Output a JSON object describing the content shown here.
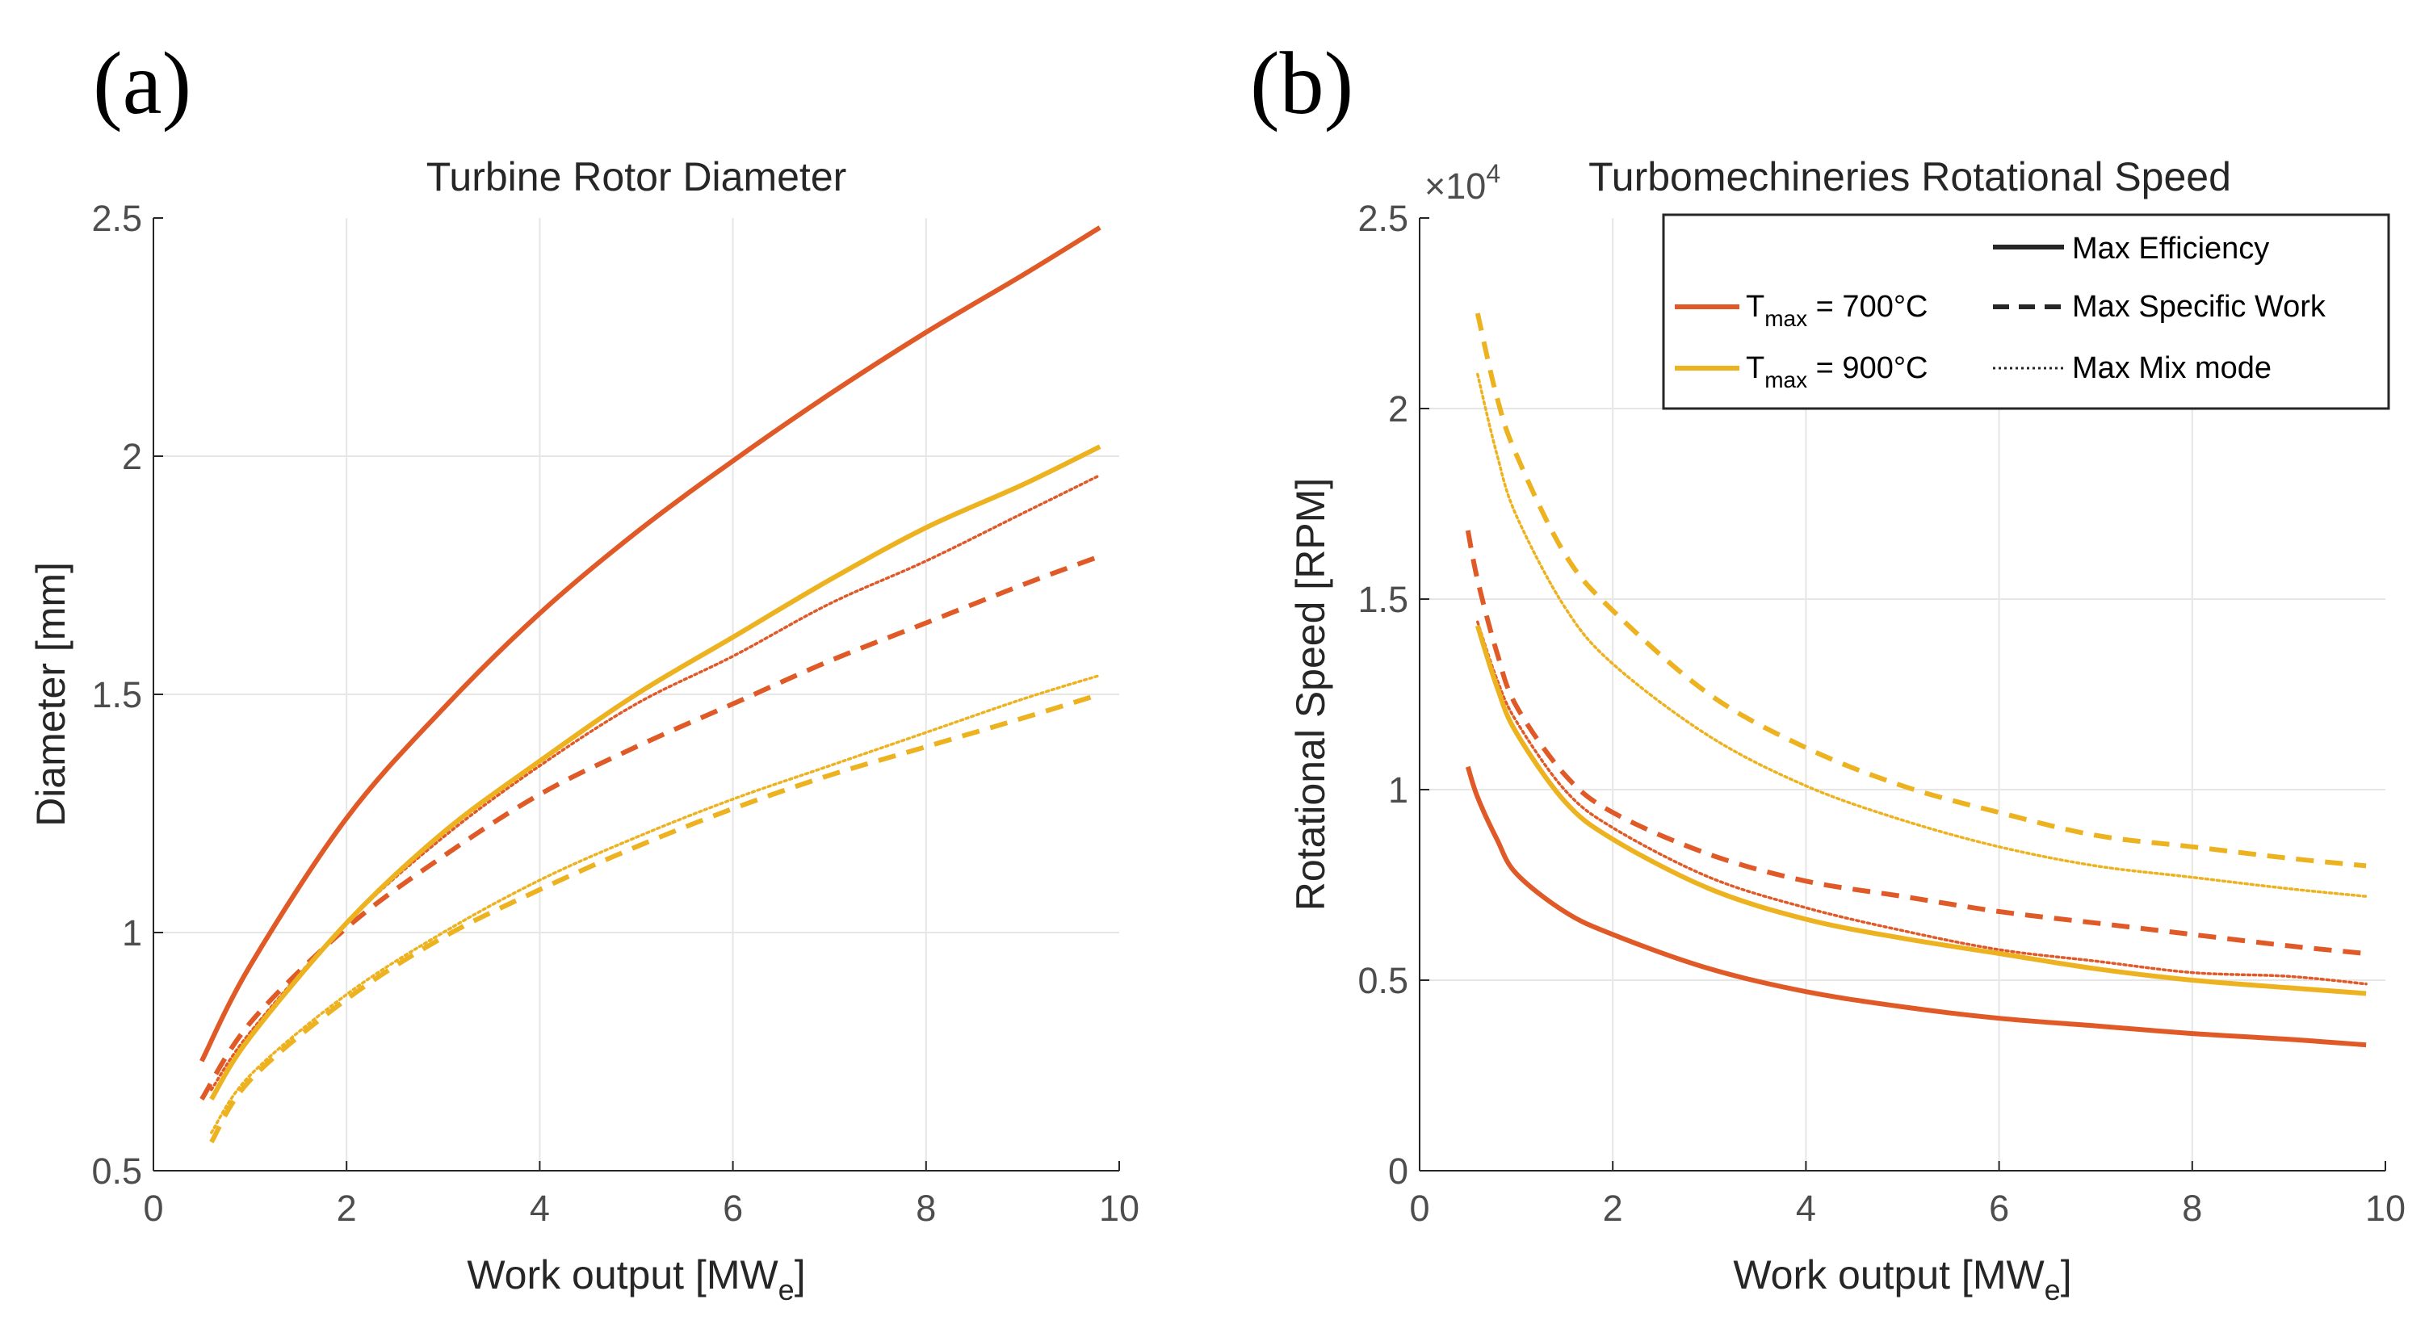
{
  "figure": {
    "panel_a_label": "(a)",
    "panel_b_label": "(b)"
  },
  "colors": {
    "t700": "#E05A28",
    "t900": "#EDB21F",
    "black": "#262626"
  },
  "chart_data": [
    {
      "type": "line",
      "title": "Turbine Rotor Diameter",
      "ylabel": "Diameter [mm]",
      "xlabel_main": "Work output [MW",
      "xlabel_sub": "e",
      "xlabel_end": "]",
      "xlim": [
        0,
        10
      ],
      "ylim": [
        0.5,
        2.5
      ],
      "xticks": [
        0,
        2,
        4,
        6,
        8,
        10
      ],
      "xtick_labels": [
        "0",
        "2",
        "4",
        "6",
        "8",
        "10"
      ],
      "yticks": [
        0.5,
        1,
        1.5,
        2,
        2.5
      ],
      "ytick_labels": [
        "0.5",
        "1",
        "1.5",
        "2",
        "2.5"
      ],
      "grid": true,
      "series": [
        {
          "name": "T700 Max Efficiency",
          "color": "#E05A28",
          "style": "solid",
          "x": [
            0.5,
            1,
            2,
            3,
            4,
            5,
            6,
            7,
            8,
            9,
            9.8
          ],
          "y": [
            0.73,
            0.93,
            1.24,
            1.47,
            1.67,
            1.84,
            1.99,
            2.13,
            2.26,
            2.38,
            2.48
          ]
        },
        {
          "name": "T700 Max Specific Work",
          "color": "#E05A28",
          "style": "dashed",
          "x": [
            0.5,
            1,
            2,
            3,
            4,
            5,
            6,
            7,
            8,
            9,
            9.8
          ],
          "y": [
            0.65,
            0.81,
            1.01,
            1.16,
            1.29,
            1.39,
            1.48,
            1.57,
            1.65,
            1.73,
            1.79
          ]
        },
        {
          "name": "T700 Max Mix mode",
          "color": "#E05A28",
          "style": "dotted",
          "x": [
            0.6,
            1,
            2,
            3,
            4,
            5,
            6,
            7,
            8,
            9,
            9.8
          ],
          "y": [
            0.67,
            0.79,
            1.02,
            1.2,
            1.35,
            1.48,
            1.58,
            1.69,
            1.78,
            1.88,
            1.96
          ]
        },
        {
          "name": "T900 Max Efficiency",
          "color": "#EDB21F",
          "style": "solid",
          "x": [
            0.6,
            1,
            2,
            3,
            4,
            5,
            6,
            7,
            8,
            9,
            9.8
          ],
          "y": [
            0.65,
            0.78,
            1.02,
            1.21,
            1.36,
            1.5,
            1.62,
            1.74,
            1.85,
            1.94,
            2.02
          ]
        },
        {
          "name": "T900 Max Specific Work",
          "color": "#EDB21F",
          "style": "dashed",
          "x": [
            0.6,
            1,
            2,
            3,
            4,
            5,
            6,
            7,
            8,
            9,
            9.8
          ],
          "y": [
            0.56,
            0.69,
            0.86,
            0.99,
            1.09,
            1.18,
            1.26,
            1.33,
            1.39,
            1.45,
            1.5
          ]
        },
        {
          "name": "T900 Max Mix mode",
          "color": "#EDB21F",
          "style": "dotted",
          "x": [
            0.6,
            1,
            2,
            3,
            4,
            5,
            6,
            7,
            8,
            9,
            9.8
          ],
          "y": [
            0.58,
            0.7,
            0.87,
            1.0,
            1.11,
            1.2,
            1.28,
            1.35,
            1.42,
            1.49,
            1.54
          ]
        }
      ]
    },
    {
      "type": "line",
      "title": "Turbomechineries Rotational Speed",
      "exponent_base": "×10",
      "exponent_power": "4",
      "ylabel": "Rotational Speed [RPM]",
      "xlabel_main": "Work output [MW",
      "xlabel_sub": "e",
      "xlabel_end": "]",
      "xlim": [
        0,
        10
      ],
      "ylim": [
        0,
        2.5
      ],
      "xticks": [
        0,
        2,
        4,
        6,
        8,
        10
      ],
      "xtick_labels": [
        "0",
        "2",
        "4",
        "6",
        "8",
        "10"
      ],
      "yticks": [
        0,
        0.5,
        1,
        1.5,
        2,
        2.5
      ],
      "ytick_labels": [
        "0",
        "0.5",
        "1",
        "1.5",
        "2",
        "2.5"
      ],
      "grid": true,
      "legend": {
        "position": "top-right",
        "style_entries": [
          "Max Efficiency",
          "Max Specific Work",
          "Max Mix mode"
        ],
        "color_entries": [
          {
            "prefix": "T",
            "sub": "max",
            "suffix": " = 700°C",
            "color": "#E05A28"
          },
          {
            "prefix": "T",
            "sub": "max",
            "suffix": " = 900°C",
            "color": "#EDB21F"
          }
        ]
      },
      "series": [
        {
          "name": "T700 Max Efficiency",
          "color": "#E05A28",
          "style": "solid",
          "x": [
            0.5,
            0.6,
            0.8,
            1,
            1.5,
            2,
            3,
            4,
            5,
            6,
            7,
            8,
            9,
            9.8
          ],
          "y": [
            1.06,
            0.98,
            0.87,
            0.78,
            0.68,
            0.62,
            0.53,
            0.47,
            0.43,
            0.4,
            0.38,
            0.36,
            0.345,
            0.33
          ]
        },
        {
          "name": "T700 Max Specific Work",
          "color": "#E05A28",
          "style": "dashed",
          "x": [
            0.5,
            0.6,
            0.8,
            1,
            1.5,
            2,
            3,
            4,
            5,
            6,
            7,
            8,
            9,
            9.8
          ],
          "y": [
            1.68,
            1.55,
            1.36,
            1.22,
            1.04,
            0.94,
            0.83,
            0.76,
            0.72,
            0.68,
            0.65,
            0.62,
            0.59,
            0.57
          ]
        },
        {
          "name": "T700 Max Mix mode",
          "color": "#E05A28",
          "style": "dotted",
          "x": [
            0.6,
            0.8,
            1,
            1.5,
            2,
            3,
            4,
            5,
            6,
            7,
            8,
            9,
            9.8
          ],
          "y": [
            1.44,
            1.29,
            1.18,
            1.0,
            0.9,
            0.77,
            0.69,
            0.63,
            0.58,
            0.55,
            0.52,
            0.51,
            0.49
          ]
        },
        {
          "name": "T900 Max Efficiency",
          "color": "#EDB21F",
          "style": "solid",
          "x": [
            0.6,
            0.8,
            1,
            1.5,
            2,
            3,
            4,
            5,
            6,
            7,
            8,
            9,
            9.8
          ],
          "y": [
            1.43,
            1.27,
            1.15,
            0.97,
            0.87,
            0.74,
            0.66,
            0.61,
            0.57,
            0.53,
            0.5,
            0.48,
            0.465
          ]
        },
        {
          "name": "T900 Max Specific Work",
          "color": "#EDB21F",
          "style": "dashed",
          "x": [
            0.6,
            0.8,
            1,
            1.5,
            2,
            3,
            4,
            5,
            6,
            7,
            8,
            9,
            9.8
          ],
          "y": [
            2.25,
            2.03,
            1.88,
            1.62,
            1.47,
            1.25,
            1.11,
            1.01,
            0.94,
            0.88,
            0.85,
            0.82,
            0.8
          ]
        },
        {
          "name": "T900 Max Mix mode",
          "color": "#EDB21F",
          "style": "dotted",
          "x": [
            0.6,
            0.8,
            1,
            1.5,
            2,
            3,
            4,
            5,
            6,
            7,
            8,
            9,
            9.8
          ],
          "y": [
            2.09,
            1.88,
            1.72,
            1.48,
            1.33,
            1.14,
            1.01,
            0.92,
            0.85,
            0.8,
            0.77,
            0.74,
            0.72
          ]
        }
      ]
    }
  ]
}
